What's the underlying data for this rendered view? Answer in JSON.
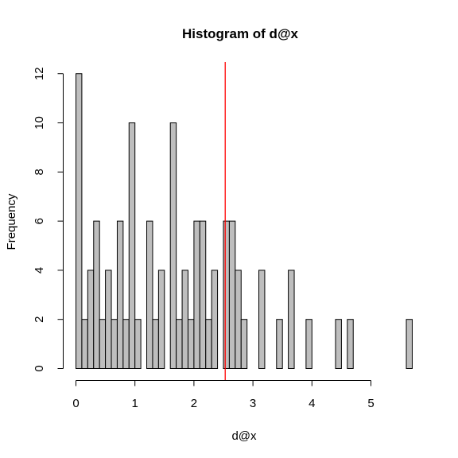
{
  "chart_data": {
    "type": "bar",
    "title": "Histogram of d@x",
    "xlabel": "d@x",
    "ylabel": "Frequency",
    "xlim": [
      0,
      5.7
    ],
    "ylim": [
      0,
      12
    ],
    "x_ticks": [
      0,
      1,
      2,
      3,
      4,
      5
    ],
    "y_ticks": [
      0,
      2,
      4,
      6,
      8,
      10,
      12
    ],
    "bin_width": 0.1,
    "bin_start": 0.0,
    "frequencies": [
      12,
      2,
      4,
      6,
      2,
      4,
      2,
      6,
      2,
      10,
      2,
      0,
      6,
      2,
      4,
      0,
      10,
      2,
      4,
      2,
      6,
      6,
      2,
      4,
      0,
      6,
      6,
      4,
      2,
      0,
      0,
      4,
      0,
      0,
      2,
      0,
      4,
      0,
      0,
      2,
      0,
      0,
      0,
      0,
      2,
      0,
      2,
      0,
      0,
      0,
      0,
      0,
      0,
      0,
      0,
      0,
      2
    ],
    "vline": {
      "x": 2.53,
      "color": "#ff0000"
    },
    "bar_color": "#bebebe"
  }
}
